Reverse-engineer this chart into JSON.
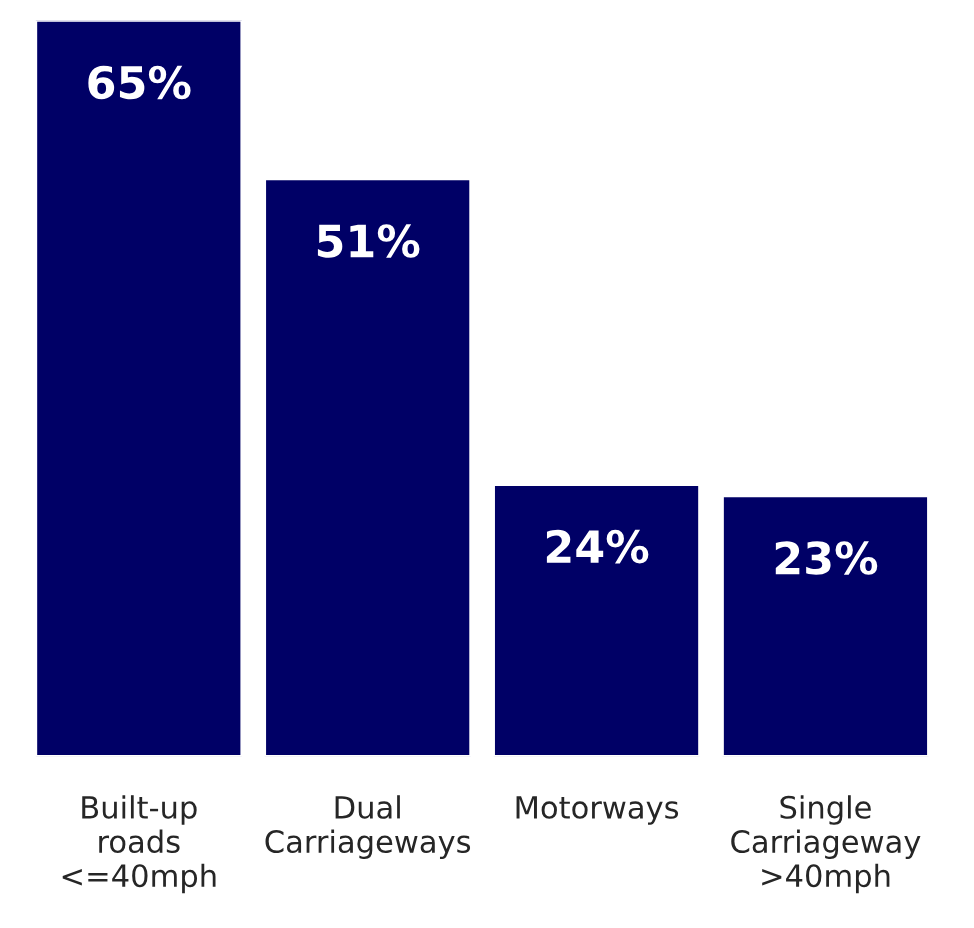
{
  "chart_data": {
    "type": "bar",
    "categories": [
      "Built-up\nroads\n<=40mph",
      "Dual\nCarriageways",
      "Motorways",
      "Single\nCarriageway\n>40mph"
    ],
    "values": [
      65,
      51,
      24,
      23
    ],
    "value_labels": [
      "65%",
      "51%",
      "24%",
      "23%"
    ],
    "color": "#000066",
    "ylim": [
      0,
      65
    ],
    "tick_labels": "x",
    "grid": false,
    "legend": false
  }
}
